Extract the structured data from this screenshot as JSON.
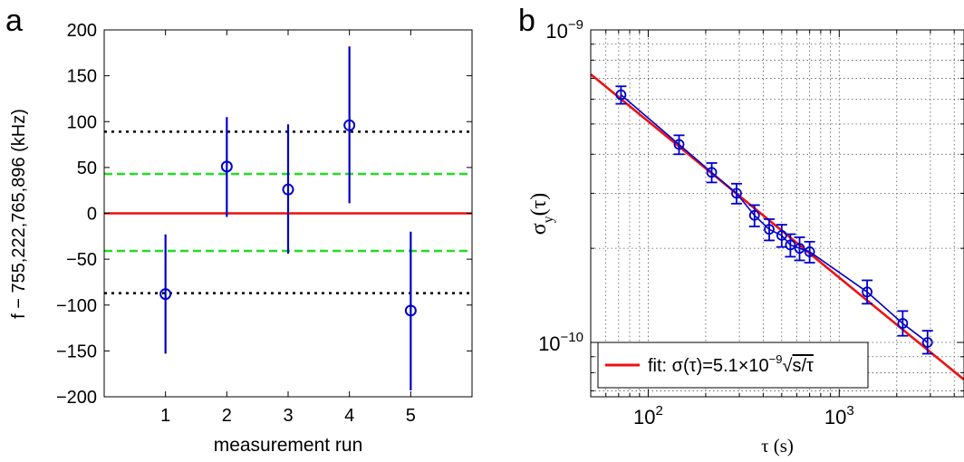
{
  "panels": {
    "a": "a",
    "b": "b"
  },
  "chart_data": [
    {
      "type": "scatter",
      "panel": "a",
      "ylabel": "f − 755,222,765,896 (kHz)",
      "xlabel": "measurement run",
      "xlim": [
        0,
        6
      ],
      "ylim": [
        -200,
        200
      ],
      "xticks": [
        1,
        2,
        3,
        4,
        5
      ],
      "yticks": [
        -200,
        -150,
        -100,
        -50,
        0,
        50,
        100,
        150,
        200
      ],
      "ytick_labels": [
        "−200",
        "−150",
        "−100",
        "−50",
        "0",
        "50",
        "100",
        "150",
        "200"
      ],
      "grid": false,
      "series": [
        {
          "marker": "circle",
          "color": "#0000cc",
          "x": [
            1,
            2,
            3,
            4,
            5
          ],
          "y": [
            -88,
            51,
            26,
            96,
            -106
          ],
          "err_low": [
            -153,
            -4,
            -44,
            11,
            -193
          ],
          "err_high": [
            -23,
            105,
            97,
            182,
            -20
          ]
        }
      ],
      "reference_lines": [
        {
          "y": 0,
          "color": "#ee1111",
          "style": "solid"
        },
        {
          "y": 43,
          "color": "#22dd22",
          "style": "dashed"
        },
        {
          "y": -41,
          "color": "#22dd22",
          "style": "dashed"
        },
        {
          "y": 89,
          "color": "#000000",
          "style": "dotted"
        },
        {
          "y": -87,
          "color": "#000000",
          "style": "dotted"
        }
      ]
    },
    {
      "type": "line",
      "panel": "b",
      "xscale": "log",
      "yscale": "log",
      "xlabel": "τ (s)",
      "ylabel": "σy(τ)",
      "xlim": [
        50,
        4500
      ],
      "ylim": [
        6.7e-11,
        1e-09
      ],
      "xticks": [
        100,
        1000
      ],
      "yticks": [
        1e-10,
        1e-09
      ],
      "grid": true,
      "series": [
        {
          "marker": "circle",
          "color": "#0000cc",
          "x": [
            72,
            145,
            215,
            290,
            360,
            430,
            500,
            555,
            620,
            700,
            1400,
            2150,
            2900
          ],
          "y": [
            6.2e-10,
            4.3e-10,
            3.5e-10,
            3e-10,
            2.55e-10,
            2.3e-10,
            2.2e-10,
            2.05e-10,
            2e-10,
            1.95e-10,
            1.45e-10,
            1.15e-10,
            1e-10
          ],
          "err_low": [
            5.8e-10,
            4e-10,
            3.25e-10,
            2.78e-10,
            2.35e-10,
            2.12e-10,
            2.02e-10,
            1.88e-10,
            1.83e-10,
            1.8e-10,
            1.33e-10,
            1.05e-10,
            9.2e-11
          ],
          "err_high": [
            6.6e-10,
            4.6e-10,
            3.75e-10,
            3.22e-10,
            2.75e-10,
            2.48e-10,
            2.38e-10,
            2.22e-10,
            2.17e-10,
            2.1e-10,
            1.58e-10,
            1.26e-10,
            1.09e-10
          ]
        },
        {
          "name": "fit: σ(τ)=5.1×10⁻⁹√s/τ",
          "color": "#ee1111",
          "style": "solid",
          "formula": "5.1e-9/sqrt(tau)",
          "x": [
            50,
            4500
          ],
          "y": [
            7.21e-10,
            7.6e-11
          ]
        }
      ],
      "legend": {
        "placement": "bottom-left",
        "label_prefix": "fit: σ(τ)=5.1×10",
        "label_exp": "−9",
        "label_sqrt": "√",
        "label_radicand": "s/τ"
      }
    }
  ]
}
